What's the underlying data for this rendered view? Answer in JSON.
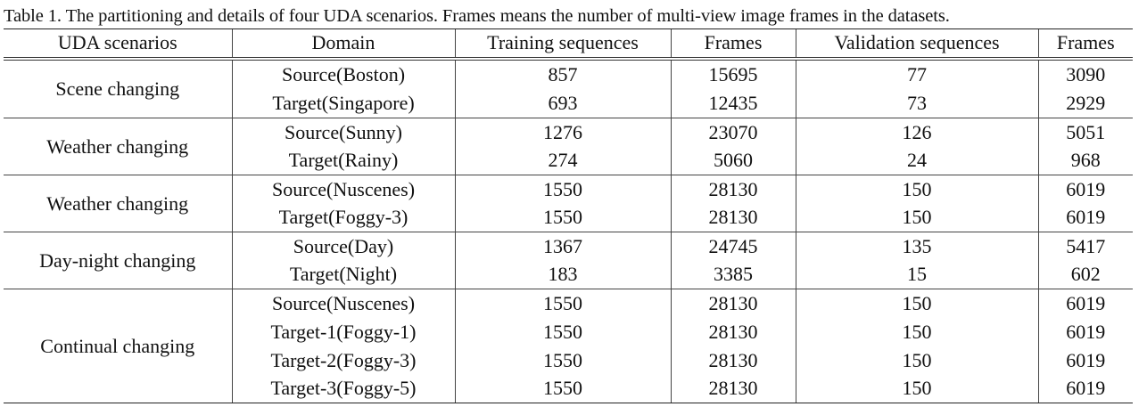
{
  "caption": "Table 1. The partitioning and details of four UDA scenarios. Frames means the number of multi-view image frames in the datasets.",
  "headers": [
    "UDA scenarios",
    "Domain",
    "Training sequences",
    "Frames",
    "Validation sequences",
    "Frames"
  ],
  "groups": [
    {
      "scenario": "Scene changing",
      "rows": [
        {
          "domain": "Source(Boston)",
          "train_seq": "857",
          "train_frames": "15695",
          "val_seq": "77",
          "val_frames": "3090"
        },
        {
          "domain": "Target(Singapore)",
          "train_seq": "693",
          "train_frames": "12435",
          "val_seq": "73",
          "val_frames": "2929"
        }
      ]
    },
    {
      "scenario": "Weather changing",
      "rows": [
        {
          "domain": "Source(Sunny)",
          "train_seq": "1276",
          "train_frames": "23070",
          "val_seq": "126",
          "val_frames": "5051"
        },
        {
          "domain": "Target(Rainy)",
          "train_seq": "274",
          "train_frames": "5060",
          "val_seq": "24",
          "val_frames": "968"
        }
      ]
    },
    {
      "scenario": "Weather changing",
      "rows": [
        {
          "domain": "Source(Nuscenes)",
          "train_seq": "1550",
          "train_frames": "28130",
          "val_seq": "150",
          "val_frames": "6019"
        },
        {
          "domain": "Target(Foggy-3)",
          "train_seq": "1550",
          "train_frames": "28130",
          "val_seq": "150",
          "val_frames": "6019"
        }
      ]
    },
    {
      "scenario": "Day-night changing",
      "rows": [
        {
          "domain": "Source(Day)",
          "train_seq": "1367",
          "train_frames": "24745",
          "val_seq": "135",
          "val_frames": "5417"
        },
        {
          "domain": "Target(Night)",
          "train_seq": "183",
          "train_frames": "3385",
          "val_seq": "15",
          "val_frames": "602"
        }
      ]
    },
    {
      "scenario": "Continual changing",
      "rows": [
        {
          "domain": "Source(Nuscenes)",
          "train_seq": "1550",
          "train_frames": "28130",
          "val_seq": "150",
          "val_frames": "6019"
        },
        {
          "domain": "Target-1(Foggy-1)",
          "train_seq": "1550",
          "train_frames": "28130",
          "val_seq": "150",
          "val_frames": "6019"
        },
        {
          "domain": "Target-2(Foggy-3)",
          "train_seq": "1550",
          "train_frames": "28130",
          "val_seq": "150",
          "val_frames": "6019"
        },
        {
          "domain": "Target-3(Foggy-5)",
          "train_seq": "1550",
          "train_frames": "28130",
          "val_seq": "150",
          "val_frames": "6019"
        }
      ]
    }
  ]
}
